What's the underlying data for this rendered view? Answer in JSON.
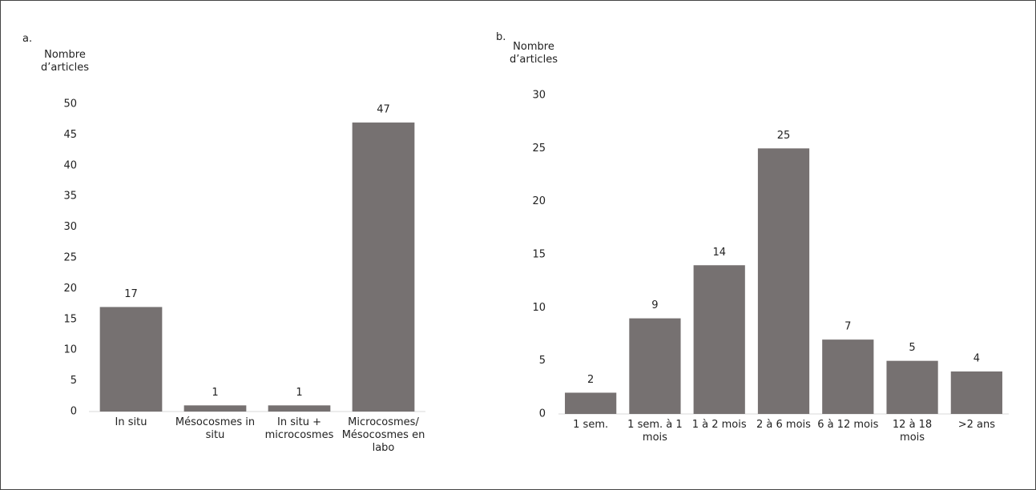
{
  "chart_data": [
    {
      "type": "bar",
      "panel": "a.",
      "y_label": "Nombre d’articles",
      "categories": [
        "In situ",
        "Mésocosmes in situ",
        "In situ + microcosmes",
        "Microcosmes/ Mésocosmes en labo"
      ],
      "values": [
        17,
        1,
        1,
        47
      ],
      "color": "#767171",
      "ylim": [
        0,
        50
      ],
      "yticks": [
        0,
        5,
        10,
        15,
        20,
        25,
        30,
        35,
        40,
        45,
        50
      ]
    },
    {
      "type": "bar",
      "panel": "b.",
      "y_label": "Nombre d’articles",
      "categories": [
        "1 sem.",
        "1 sem. à 1 mois",
        "1 à 2 mois",
        "2 à 6 mois",
        "6 à 12 mois",
        "12 à 18 mois",
        ">2 ans"
      ],
      "values": [
        2,
        9,
        14,
        25,
        7,
        5,
        4
      ],
      "color": "#767171",
      "ylim": [
        0,
        30
      ],
      "yticks": [
        0,
        5,
        10,
        15,
        20,
        25,
        30
      ]
    }
  ]
}
